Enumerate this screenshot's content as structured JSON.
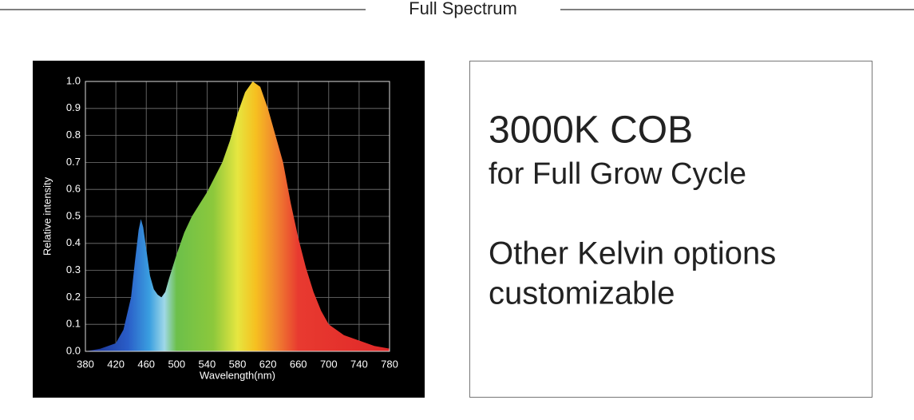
{
  "header": {
    "title": "Full Spectrum"
  },
  "chart_data": {
    "type": "area",
    "x": [
      380,
      400,
      420,
      430,
      440,
      445,
      450,
      453,
      456,
      460,
      465,
      470,
      475,
      480,
      485,
      490,
      500,
      510,
      520,
      540,
      560,
      570,
      580,
      590,
      600,
      610,
      620,
      630,
      640,
      650,
      660,
      670,
      680,
      690,
      700,
      720,
      740,
      760,
      780
    ],
    "values": [
      0,
      0.01,
      0.03,
      0.08,
      0.2,
      0.33,
      0.45,
      0.49,
      0.46,
      0.38,
      0.28,
      0.23,
      0.21,
      0.2,
      0.22,
      0.27,
      0.36,
      0.44,
      0.5,
      0.59,
      0.7,
      0.78,
      0.88,
      0.96,
      1.0,
      0.98,
      0.9,
      0.8,
      0.7,
      0.55,
      0.42,
      0.31,
      0.22,
      0.15,
      0.1,
      0.06,
      0.04,
      0.02,
      0.01
    ],
    "xlabel": "Wavelength(nm)",
    "ylabel": "Relative intensity",
    "xlim": [
      380,
      780
    ],
    "xticks": [
      380,
      420,
      460,
      500,
      540,
      580,
      620,
      660,
      700,
      740,
      780
    ],
    "ylim": [
      0,
      1
    ],
    "yticks": [
      {
        "value": 0,
        "label": "0.0"
      },
      0.1,
      0.2,
      0.3,
      0.4,
      0.5,
      0.6,
      0.7,
      0.8,
      0.9,
      {
        "value": 1,
        "label": "1.0"
      }
    ],
    "grid": true
  },
  "text_box": {
    "lines": [
      "3000K COB",
      "for Full Grow Cycle",
      "Other Kelvin options",
      "customizable"
    ]
  }
}
